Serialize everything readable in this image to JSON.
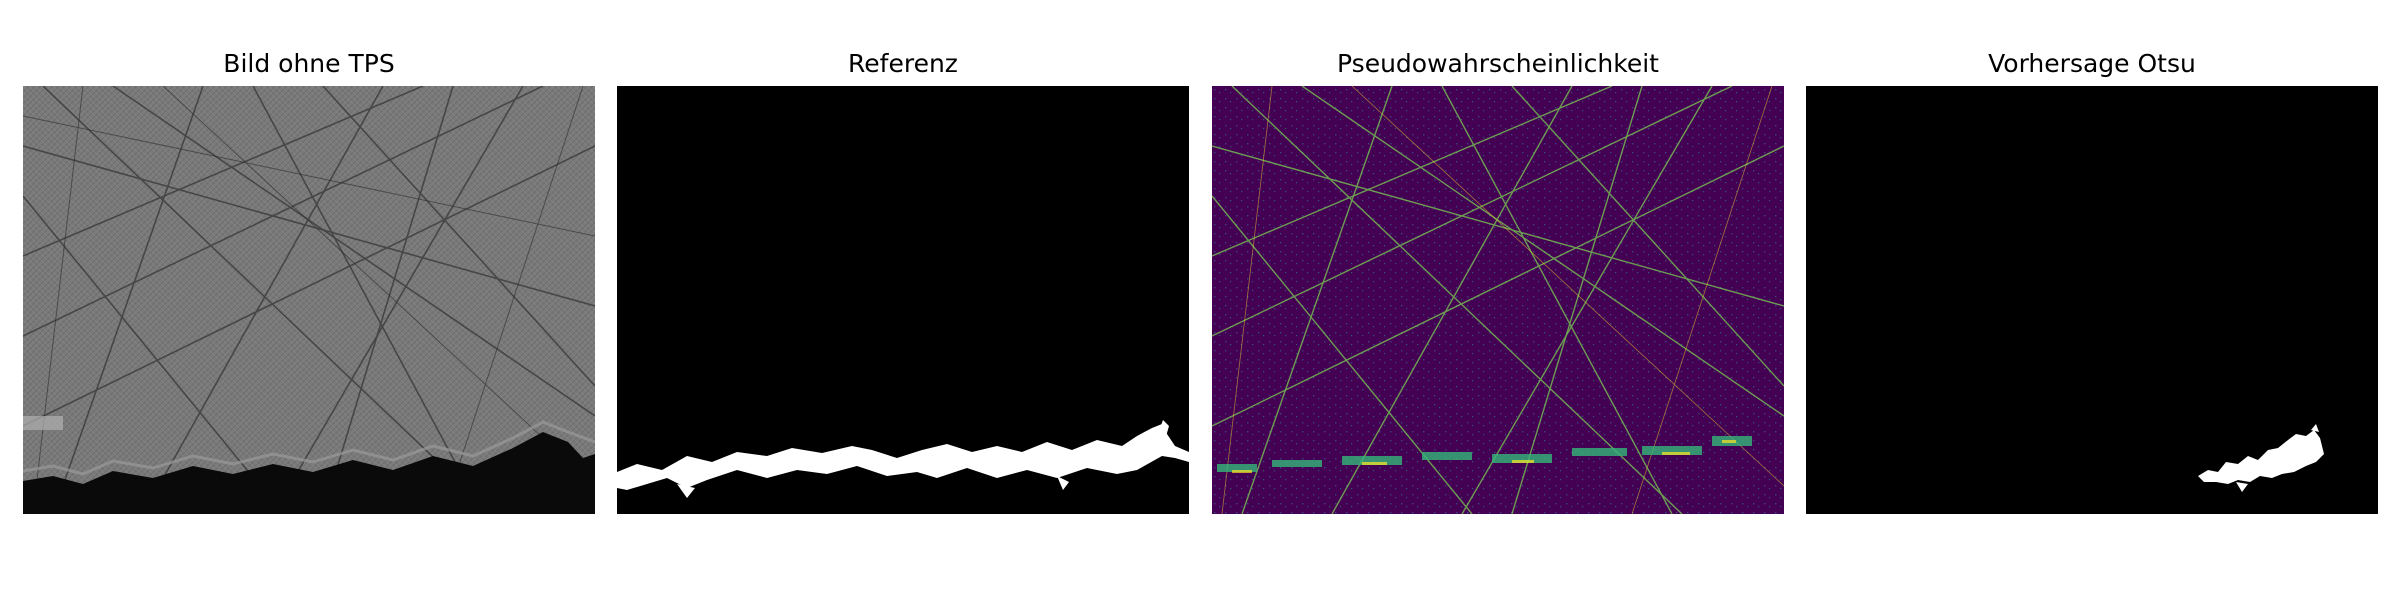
{
  "panels": [
    {
      "title": "Bild ohne TPS"
    },
    {
      "title": "Referenz"
    },
    {
      "title": "Pseudowahrscheinlichkeit"
    },
    {
      "title": "Vorhersage Otsu"
    }
  ],
  "colors": {
    "background": "#ffffff",
    "grayscale_surface": "#808080",
    "mask_background": "#000000",
    "mask_foreground": "#ffffff",
    "viridis_low": "#440154",
    "viridis_mid": "#21918c",
    "viridis_high": "#fde725"
  }
}
